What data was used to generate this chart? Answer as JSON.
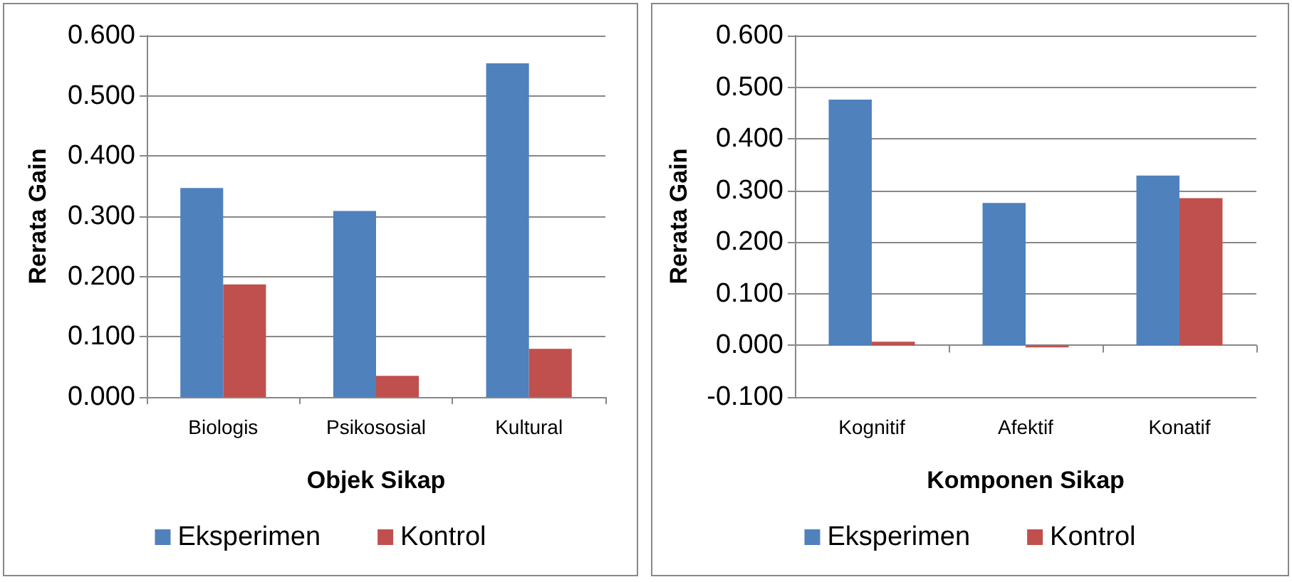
{
  "chart_data": [
    {
      "type": "bar",
      "xlabel": "Objek Sikap",
      "ylabel": "Rerata Gain",
      "categories": [
        "Biologis",
        "Psikososial",
        "Kultural"
      ],
      "series": [
        {
          "name": "Eksperimen",
          "color": "#4f81bd",
          "values": [
            0.347,
            0.309,
            0.554
          ]
        },
        {
          "name": "Kontrol",
          "color": "#c0504d",
          "values": [
            0.187,
            0.035,
            0.08
          ]
        }
      ],
      "ylim": [
        0,
        0.6
      ],
      "yticks": [
        {
          "value": 0,
          "label": "0.000"
        },
        {
          "value": 0.1,
          "label": "0.100"
        },
        {
          "value": 0.2,
          "label": "0.200"
        },
        {
          "value": 0.3,
          "label": "0.300"
        },
        {
          "value": 0.4,
          "label": "0.400"
        },
        {
          "value": 0.5,
          "label": "0.500"
        },
        {
          "value": 0.6,
          "label": "0.600"
        }
      ],
      "grid": "y",
      "legend": "bottom"
    },
    {
      "type": "bar",
      "xlabel": "Komponen Sikap",
      "ylabel": "Rerata Gain",
      "categories": [
        "Kognitif",
        "Afektif",
        "Konatif"
      ],
      "series": [
        {
          "name": "Eksperimen",
          "color": "#4f81bd",
          "values": [
            0.476,
            0.276,
            0.329
          ]
        },
        {
          "name": "Kontrol",
          "color": "#c0504d",
          "values": [
            0.007,
            -0.004,
            0.285
          ]
        }
      ],
      "ylim": [
        -0.1,
        0.6
      ],
      "yticks": [
        {
          "value": -0.1,
          "label": "-0.100"
        },
        {
          "value": 0,
          "label": "0.000"
        },
        {
          "value": 0.1,
          "label": "0.100"
        },
        {
          "value": 0.2,
          "label": "0.200"
        },
        {
          "value": 0.3,
          "label": "0.300"
        },
        {
          "value": 0.4,
          "label": "0.400"
        },
        {
          "value": 0.5,
          "label": "0.500"
        },
        {
          "value": 0.6,
          "label": "0.600"
        }
      ],
      "grid": "y",
      "legend": "bottom"
    }
  ]
}
